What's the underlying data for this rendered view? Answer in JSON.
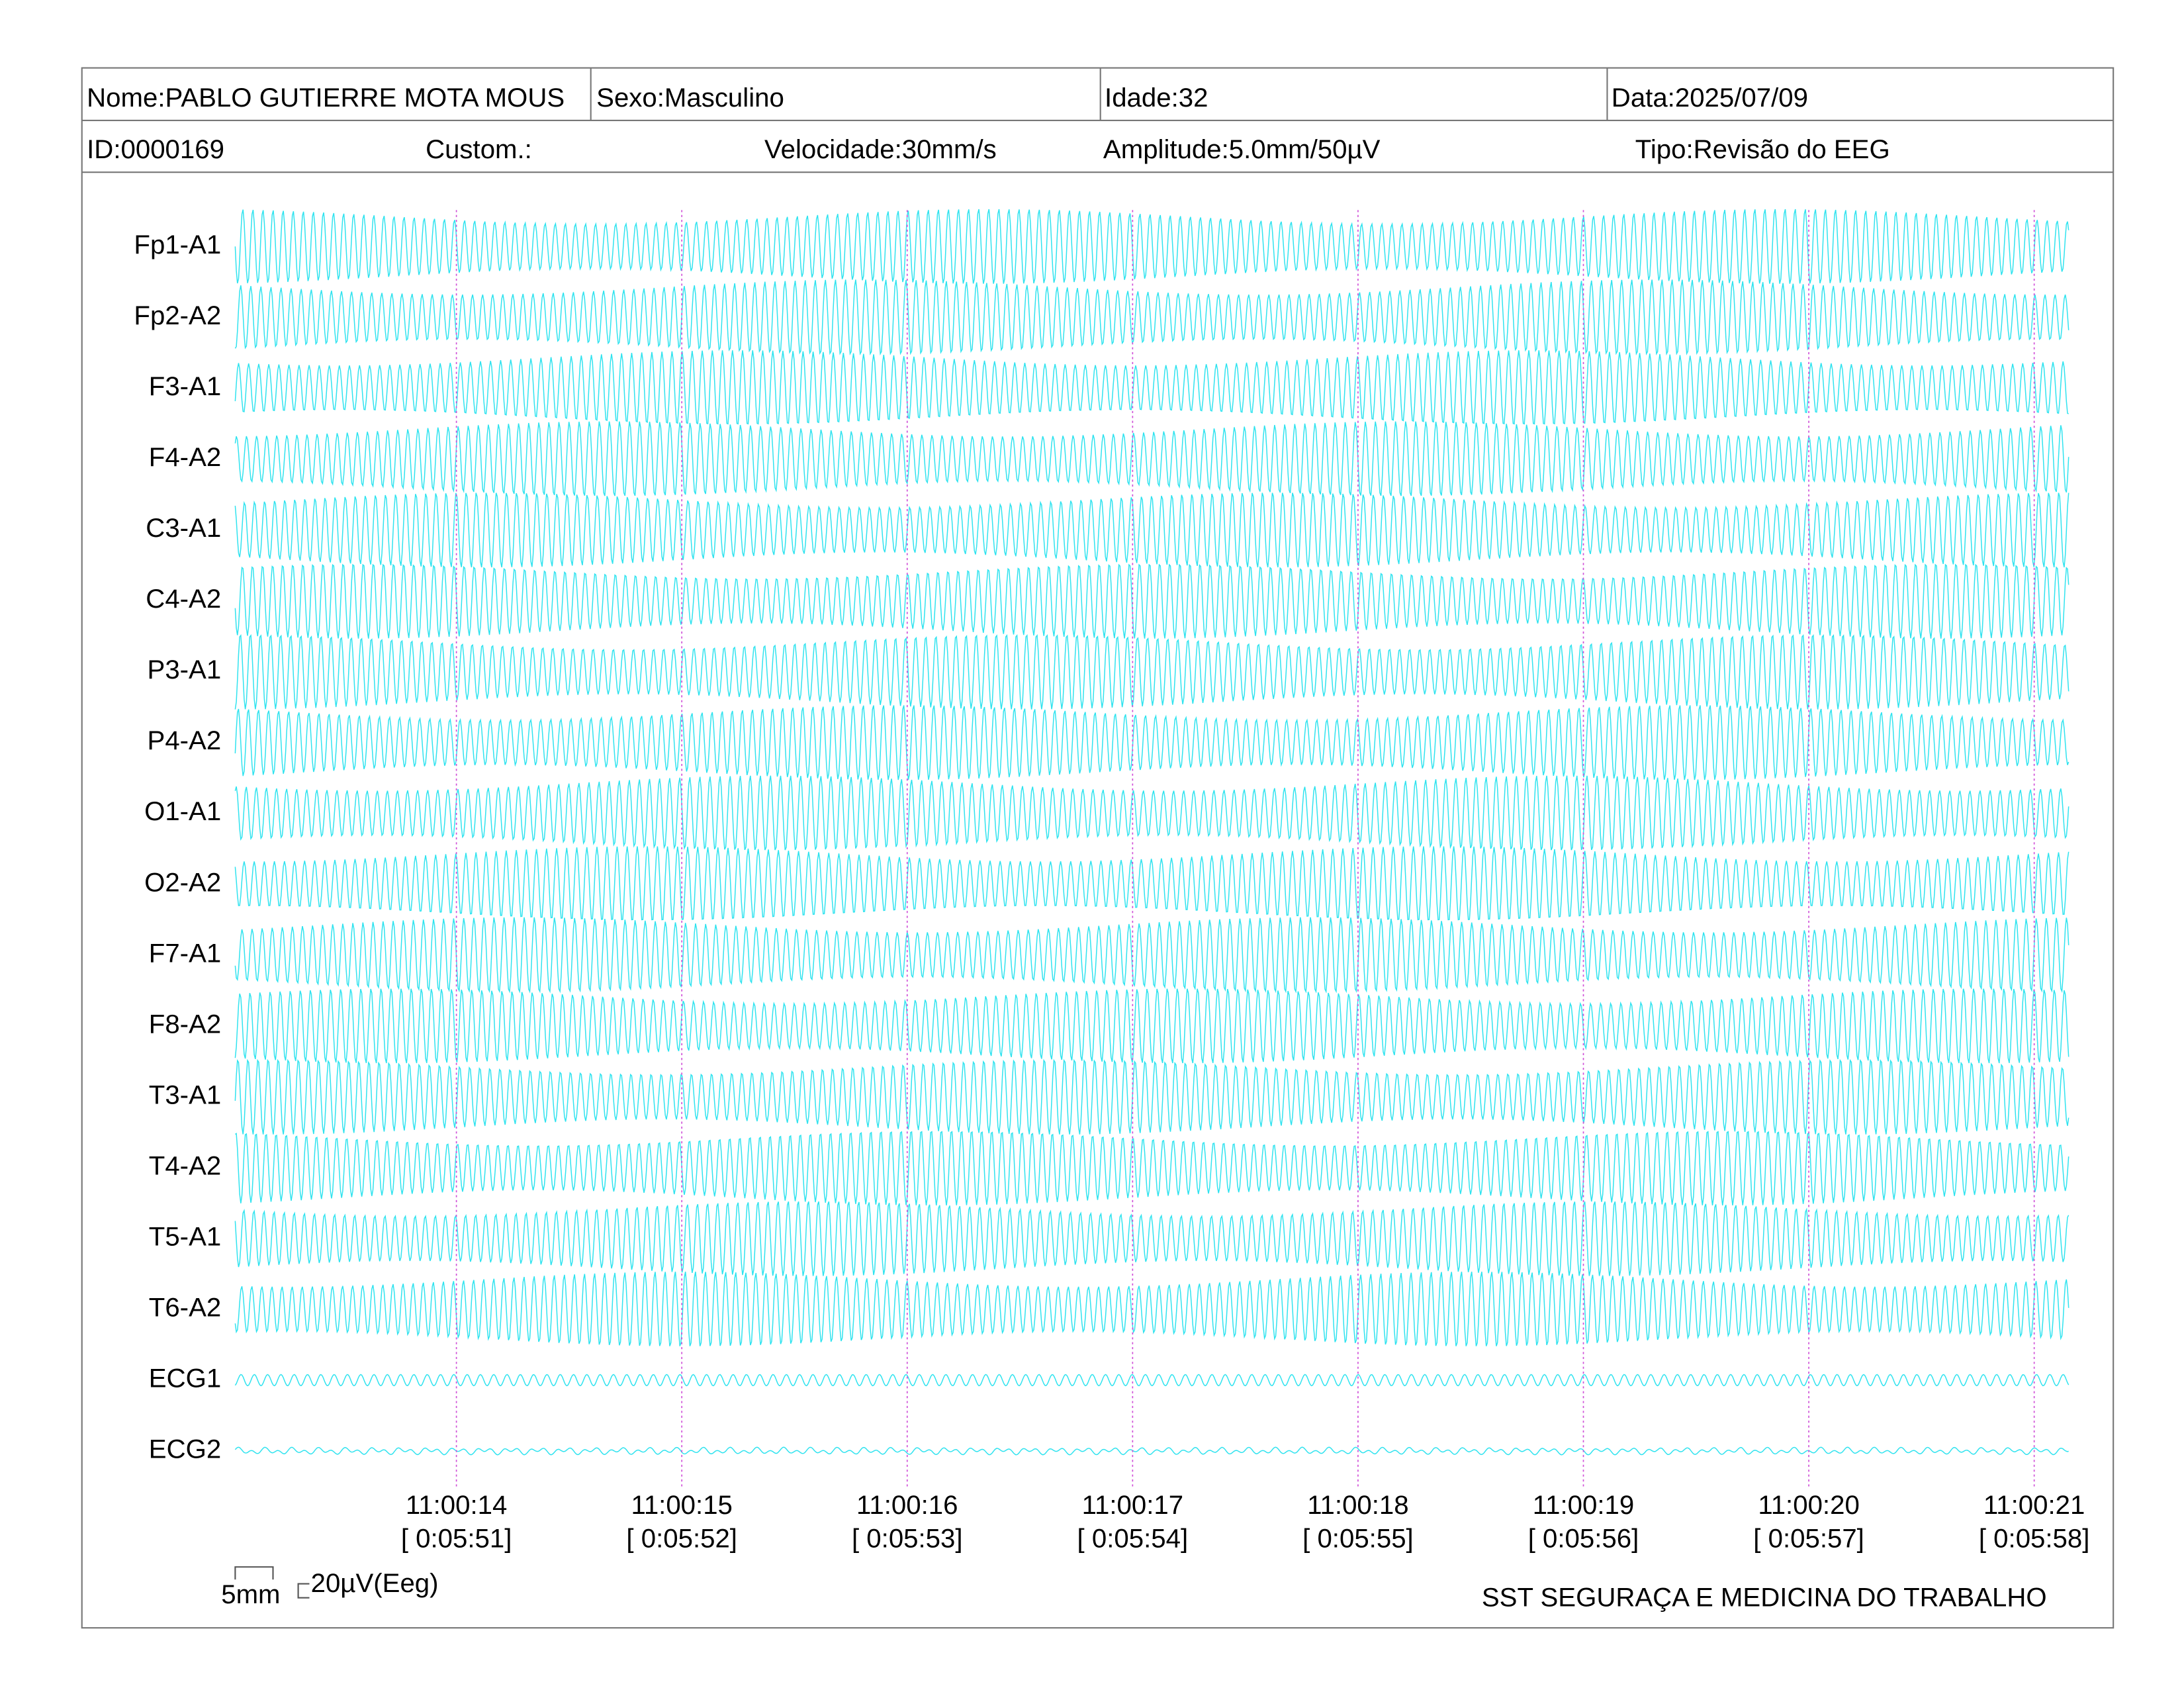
{
  "header": {
    "name": "Nome:PABLO GUTIERRE MOTA MOUS",
    "sex": "Sexo:Masculino",
    "age": "Idade:32",
    "date": "Data:2025/07/09",
    "id": "ID:0000169",
    "custom": "Custom.:",
    "speed": "Velocidade:30mm/s",
    "amplitude": "Amplitude:5.0mm/50µV",
    "type": "Tipo:Revisão do EEG"
  },
  "channels": [
    "Fp1-A1",
    "Fp2-A2",
    "F3-A1",
    "F4-A2",
    "C3-A1",
    "C4-A2",
    "P3-A1",
    "P4-A2",
    "O1-A1",
    "O2-A2",
    "F7-A1",
    "F8-A2",
    "T3-A1",
    "T4-A2",
    "T5-A1",
    "T6-A2",
    "ECG1",
    "ECG2"
  ],
  "time_markers": [
    {
      "time": "11:00:14",
      "elapsed": "[ 0:05:51]"
    },
    {
      "time": "11:00:15",
      "elapsed": "[ 0:05:52]"
    },
    {
      "time": "11:00:16",
      "elapsed": "[ 0:05:53]"
    },
    {
      "time": "11:00:17",
      "elapsed": "[ 0:05:54]"
    },
    {
      "time": "11:00:18",
      "elapsed": "[ 0:05:55]"
    },
    {
      "time": "11:00:19",
      "elapsed": "[ 0:05:56]"
    },
    {
      "time": "11:00:20",
      "elapsed": "[ 0:05:57]"
    },
    {
      "time": "11:00:21",
      "elapsed": "[ 0:05:58]"
    }
  ],
  "scale": {
    "length": "5mm",
    "amplitude": "20µV(Eeg)"
  },
  "footer": "SST SEGURAÇA E MEDICINA DO TRABALHO"
}
